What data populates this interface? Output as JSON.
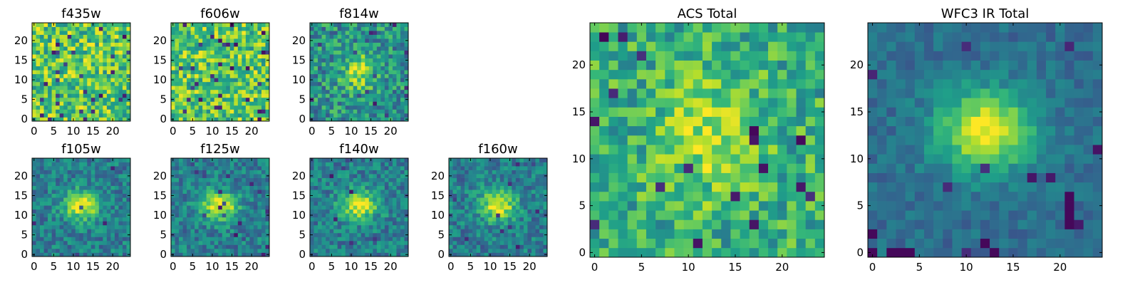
{
  "chart_data": [
    {
      "id": "f435w",
      "type": "heatmap",
      "title": "f435w",
      "size": 25,
      "colormap": "viridis",
      "style": "noise",
      "xticks": [
        0,
        5,
        10,
        15,
        20
      ],
      "yticks": [
        0,
        5,
        10,
        15,
        20
      ],
      "xlim": [
        -0.5,
        24.5
      ],
      "ylim": [
        -0.5,
        24.5
      ]
    },
    {
      "id": "f606w",
      "type": "heatmap",
      "title": "f606w",
      "size": 25,
      "colormap": "viridis",
      "style": "noise",
      "xticks": [
        0,
        5,
        10,
        15,
        20
      ],
      "yticks": [
        0,
        5,
        10,
        15,
        20
      ],
      "xlim": [
        -0.5,
        24.5
      ],
      "ylim": [
        -0.5,
        24.5
      ]
    },
    {
      "id": "f814w",
      "type": "heatmap",
      "title": "f814w",
      "size": 25,
      "colormap": "viridis",
      "style": "faint-source",
      "xticks": [
        0,
        5,
        10,
        15,
        20
      ],
      "yticks": [
        0,
        5,
        10,
        15,
        20
      ],
      "xlim": [
        -0.5,
        24.5
      ],
      "ylim": [
        -0.5,
        24.5
      ]
    },
    {
      "id": "f105w",
      "type": "heatmap",
      "title": "f105w",
      "size": 25,
      "colormap": "viridis",
      "style": "source",
      "xticks": [
        0,
        5,
        10,
        15,
        20
      ],
      "yticks": [
        0,
        5,
        10,
        15,
        20
      ],
      "xlim": [
        -0.5,
        24.5
      ],
      "ylim": [
        -0.5,
        24.5
      ]
    },
    {
      "id": "f125w",
      "type": "heatmap",
      "title": "f125w",
      "size": 25,
      "colormap": "viridis",
      "style": "source",
      "xticks": [
        0,
        5,
        10,
        15,
        20
      ],
      "yticks": [
        0,
        5,
        10,
        15,
        20
      ],
      "xlim": [
        -0.5,
        24.5
      ],
      "ylim": [
        -0.5,
        24.5
      ]
    },
    {
      "id": "f140w",
      "type": "heatmap",
      "title": "f140w",
      "size": 25,
      "colormap": "viridis",
      "style": "source",
      "xticks": [
        0,
        5,
        10,
        15,
        20
      ],
      "yticks": [
        0,
        5,
        10,
        15,
        20
      ],
      "xlim": [
        -0.5,
        24.5
      ],
      "ylim": [
        -0.5,
        24.5
      ]
    },
    {
      "id": "f160w",
      "type": "heatmap",
      "title": "f160w",
      "size": 25,
      "colormap": "viridis",
      "style": "source",
      "xticks": [
        0,
        5,
        10,
        15,
        20
      ],
      "yticks": [
        0,
        5,
        10,
        15,
        20
      ],
      "xlim": [
        -0.5,
        24.5
      ],
      "ylim": [
        -0.5,
        24.5
      ]
    },
    {
      "id": "acs-total",
      "type": "heatmap",
      "title": "ACS Total",
      "size": 25,
      "colormap": "viridis",
      "style": "acs-total",
      "xticks": [
        0,
        5,
        10,
        15,
        20
      ],
      "yticks": [
        0,
        5,
        10,
        15,
        20
      ],
      "xlim": [
        -0.5,
        24.5
      ],
      "ylim": [
        -0.5,
        24.5
      ]
    },
    {
      "id": "wfc3-ir-total",
      "type": "heatmap",
      "title": "WFC3 IR Total",
      "size": 25,
      "colormap": "viridis",
      "style": "ir-total",
      "xticks": [
        0,
        5,
        10,
        15,
        20
      ],
      "yticks": [
        0,
        5,
        10,
        15,
        20
      ],
      "xlim": [
        -0.5,
        24.5
      ],
      "ylim": [
        -0.5,
        24.5
      ]
    }
  ]
}
